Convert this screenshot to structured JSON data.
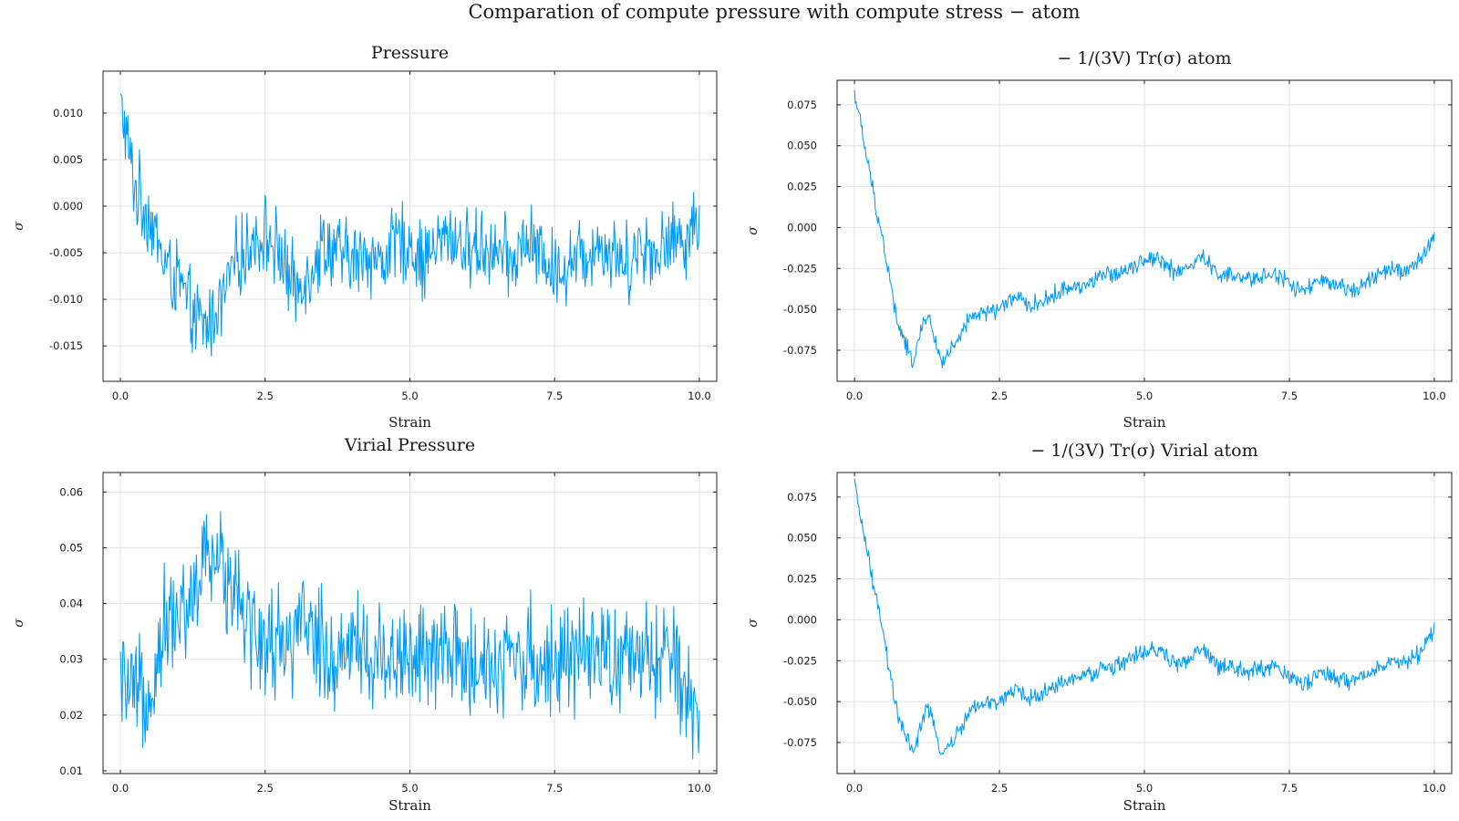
{
  "figure_title": "Comparation of compute pressure with compute stress − atom",
  "series_color": "#009af9",
  "chart_data": [
    {
      "type": "line",
      "title": "Pressure",
      "xlabel": "Strain",
      "ylabel": "σ",
      "xlim": [
        -0.3,
        10.3
      ],
      "ylim": [
        -0.0188,
        0.0145
      ],
      "xticks": [
        0.0,
        2.5,
        5.0,
        7.5,
        10.0
      ],
      "xtick_labels": [
        "0.0",
        "2.5",
        "5.0",
        "7.5",
        "10.0"
      ],
      "yticks": [
        -0.015,
        -0.01,
        -0.005,
        0.0,
        0.005,
        0.01
      ],
      "ytick_labels": [
        "-0.015",
        "-0.010",
        "-0.005",
        "0.000",
        "0.005",
        "0.010"
      ],
      "grid": true,
      "legend": "none",
      "x": [
        0,
        0.25,
        0.5,
        0.75,
        1.0,
        1.25,
        1.5,
        1.75,
        2.0,
        2.25,
        2.5,
        2.75,
        3.0,
        3.25,
        3.5,
        3.75,
        4.0,
        4.25,
        4.5,
        4.75,
        5.0,
        5.25,
        5.5,
        5.75,
        6.0,
        6.25,
        6.5,
        6.75,
        7.0,
        7.25,
        7.5,
        7.75,
        8.0,
        8.25,
        8.5,
        8.75,
        9.0,
        9.25,
        9.5,
        9.75,
        10.0
      ],
      "values": [
        0.011,
        0.002,
        -0.001,
        -0.006,
        -0.008,
        -0.012,
        -0.013,
        -0.01,
        -0.006,
        -0.004,
        -0.003,
        -0.005,
        -0.009,
        -0.007,
        -0.004,
        -0.005,
        -0.006,
        -0.005,
        -0.006,
        -0.004,
        -0.004,
        -0.006,
        -0.004,
        -0.003,
        -0.005,
        -0.004,
        -0.005,
        -0.006,
        -0.004,
        -0.005,
        -0.007,
        -0.006,
        -0.005,
        -0.004,
        -0.005,
        -0.006,
        -0.004,
        -0.005,
        -0.004,
        -0.003,
        -0.002
      ]
    },
    {
      "type": "line",
      "title": "− 1/(3V) Tr(σ) atom",
      "xlabel": "Strain",
      "ylabel": "σ",
      "xlim": [
        -0.3,
        10.3
      ],
      "ylim": [
        -0.094,
        0.09
      ],
      "xticks": [
        0.0,
        2.5,
        5.0,
        7.5,
        10.0
      ],
      "xtick_labels": [
        "0.0",
        "2.5",
        "5.0",
        "7.5",
        "10.0"
      ],
      "yticks": [
        -0.075,
        -0.05,
        -0.025,
        0.0,
        0.025,
        0.05,
        0.075
      ],
      "ytick_labels": [
        "-0.075",
        "-0.050",
        "-0.025",
        "0.000",
        "0.025",
        "0.050",
        "0.075"
      ],
      "grid": true,
      "legend": "none",
      "x": [
        0,
        0.25,
        0.5,
        0.75,
        1.0,
        1.25,
        1.5,
        1.75,
        2.0,
        2.25,
        2.5,
        2.75,
        3.0,
        3.25,
        3.5,
        3.75,
        4.0,
        4.25,
        4.5,
        4.75,
        5.0,
        5.25,
        5.5,
        5.75,
        6.0,
        6.25,
        6.5,
        6.75,
        7.0,
        7.25,
        7.5,
        7.75,
        8.0,
        8.25,
        8.5,
        8.75,
        9.0,
        9.25,
        9.5,
        9.75,
        10.0
      ],
      "values": [
        0.083,
        0.035,
        -0.01,
        -0.06,
        -0.082,
        -0.052,
        -0.082,
        -0.072,
        -0.055,
        -0.052,
        -0.05,
        -0.042,
        -0.048,
        -0.045,
        -0.04,
        -0.036,
        -0.035,
        -0.03,
        -0.028,
        -0.024,
        -0.02,
        -0.018,
        -0.027,
        -0.025,
        -0.018,
        -0.028,
        -0.03,
        -0.032,
        -0.03,
        -0.028,
        -0.034,
        -0.04,
        -0.032,
        -0.036,
        -0.038,
        -0.035,
        -0.03,
        -0.025,
        -0.028,
        -0.02,
        -0.005
      ]
    },
    {
      "type": "line",
      "title": "Virial Pressure",
      "xlabel": "Strain",
      "ylabel": "σ",
      "xlim": [
        -0.3,
        10.3
      ],
      "ylim": [
        0.0095,
        0.0635
      ],
      "xticks": [
        0.0,
        2.5,
        5.0,
        7.5,
        10.0
      ],
      "xtick_labels": [
        "0.0",
        "2.5",
        "5.0",
        "7.5",
        "10.0"
      ],
      "yticks": [
        0.01,
        0.02,
        0.03,
        0.04,
        0.05,
        0.06
      ],
      "ytick_labels": [
        "0.01",
        "0.02",
        "0.03",
        "0.04",
        "0.05",
        "0.06"
      ],
      "grid": true,
      "legend": "none",
      "x": [
        0,
        0.25,
        0.5,
        0.75,
        1.0,
        1.25,
        1.5,
        1.75,
        2.0,
        2.25,
        2.5,
        2.75,
        3.0,
        3.25,
        3.5,
        3.75,
        4.0,
        4.25,
        4.5,
        4.75,
        5.0,
        5.25,
        5.5,
        5.75,
        6.0,
        6.25,
        6.5,
        6.75,
        7.0,
        7.25,
        7.5,
        7.75,
        8.0,
        8.25,
        8.5,
        8.75,
        9.0,
        9.25,
        9.5,
        9.75,
        10.0
      ],
      "values": [
        0.025,
        0.022,
        0.024,
        0.036,
        0.038,
        0.04,
        0.048,
        0.047,
        0.044,
        0.036,
        0.032,
        0.034,
        0.033,
        0.036,
        0.032,
        0.03,
        0.034,
        0.031,
        0.03,
        0.032,
        0.031,
        0.029,
        0.03,
        0.032,
        0.028,
        0.031,
        0.029,
        0.03,
        0.031,
        0.029,
        0.03,
        0.031,
        0.029,
        0.03,
        0.031,
        0.028,
        0.03,
        0.029,
        0.031,
        0.024,
        0.018
      ]
    },
    {
      "type": "line",
      "title": "− 1/(3V) Tr(σ) Virial atom",
      "xlabel": "Strain",
      "ylabel": "σ",
      "xlim": [
        -0.3,
        10.3
      ],
      "ylim": [
        -0.094,
        0.09
      ],
      "xticks": [
        0.0,
        2.5,
        5.0,
        7.5,
        10.0
      ],
      "xtick_labels": [
        "0.0",
        "2.5",
        "5.0",
        "7.5",
        "10.0"
      ],
      "yticks": [
        -0.075,
        -0.05,
        -0.025,
        0.0,
        0.025,
        0.05,
        0.075
      ],
      "ytick_labels": [
        "-0.075",
        "-0.050",
        "-0.025",
        "0.000",
        "0.025",
        "0.050",
        "0.075"
      ],
      "grid": true,
      "legend": "none",
      "x": [
        0,
        0.25,
        0.5,
        0.75,
        1.0,
        1.25,
        1.5,
        1.75,
        2.0,
        2.25,
        2.5,
        2.75,
        3.0,
        3.25,
        3.5,
        3.75,
        4.0,
        4.25,
        4.5,
        4.75,
        5.0,
        5.25,
        5.5,
        5.75,
        6.0,
        6.25,
        6.5,
        6.75,
        7.0,
        7.25,
        7.5,
        7.75,
        8.0,
        8.25,
        8.5,
        8.75,
        9.0,
        9.25,
        9.5,
        9.75,
        10.0
      ],
      "values": [
        0.083,
        0.035,
        -0.01,
        -0.06,
        -0.082,
        -0.052,
        -0.082,
        -0.072,
        -0.055,
        -0.052,
        -0.05,
        -0.042,
        -0.048,
        -0.045,
        -0.04,
        -0.036,
        -0.035,
        -0.03,
        -0.028,
        -0.024,
        -0.02,
        -0.018,
        -0.027,
        -0.025,
        -0.018,
        -0.028,
        -0.03,
        -0.032,
        -0.03,
        -0.028,
        -0.034,
        -0.04,
        -0.032,
        -0.036,
        -0.038,
        -0.035,
        -0.03,
        -0.025,
        -0.028,
        -0.02,
        -0.005
      ]
    }
  ]
}
